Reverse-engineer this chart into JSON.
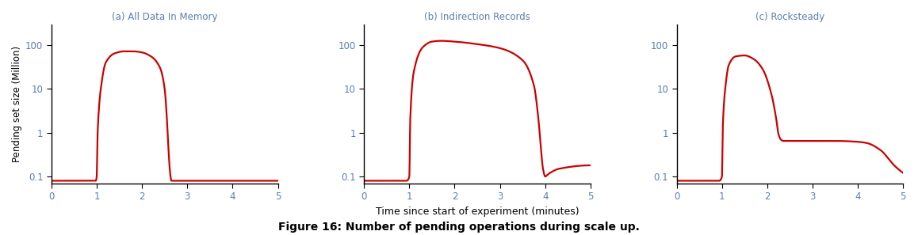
{
  "title_a": "(a) All Data In Memory",
  "title_b": "(b) Indirection Records",
  "title_c": "(c) Rocksteady",
  "xlabel": "Time since start of experiment (minutes)",
  "ylabel": "Pending set size (Million)",
  "figure_caption": "Figure 16: Number of pending operations during scale up.",
  "line_color": "#cc0000",
  "title_color": "#5a7db5",
  "tick_color": "#5a7db5",
  "xlim": [
    0,
    5
  ],
  "ylim_log": [
    0.07,
    300
  ],
  "yticks": [
    0.1,
    1,
    10,
    100
  ],
  "xticks": [
    0,
    1,
    2,
    3,
    4,
    5
  ],
  "curve_a_x": [
    0.0,
    0.98,
    1.0,
    1.02,
    1.1,
    1.2,
    1.4,
    1.6,
    1.8,
    2.0,
    2.2,
    2.4,
    2.5,
    2.55,
    2.58,
    2.62,
    2.65,
    2.7,
    5.0
  ],
  "curve_a_y": [
    0.08,
    0.08,
    0.1,
    1.0,
    12.0,
    40.0,
    65.0,
    72.0,
    72.0,
    68.0,
    55.0,
    30.0,
    10.0,
    2.0,
    0.5,
    0.12,
    0.08,
    0.08,
    0.08
  ],
  "curve_b_x": [
    0.0,
    0.94,
    1.0,
    1.02,
    1.1,
    1.3,
    1.5,
    1.7,
    2.0,
    2.5,
    3.0,
    3.5,
    3.75,
    3.85,
    3.9,
    3.95,
    4.0,
    4.05,
    4.1,
    4.3,
    5.0
  ],
  "curve_b_y": [
    0.08,
    0.08,
    0.1,
    2.0,
    25.0,
    90.0,
    120.0,
    125.0,
    120.0,
    105.0,
    85.0,
    45.0,
    12.0,
    2.0,
    0.5,
    0.15,
    0.1,
    0.11,
    0.12,
    0.15,
    0.18
  ],
  "curve_c_x": [
    0.0,
    0.94,
    1.0,
    1.02,
    1.08,
    1.15,
    1.3,
    1.5,
    1.7,
    1.9,
    2.1,
    2.2,
    2.25,
    2.3,
    2.35,
    2.5,
    3.0,
    3.5,
    4.0,
    4.2,
    4.5,
    4.8,
    5.0
  ],
  "curve_c_y": [
    0.08,
    0.08,
    0.1,
    1.5,
    12.0,
    35.0,
    55.0,
    58.0,
    48.0,
    28.0,
    7.0,
    2.0,
    0.9,
    0.7,
    0.65,
    0.65,
    0.65,
    0.65,
    0.62,
    0.58,
    0.4,
    0.18,
    0.12
  ]
}
